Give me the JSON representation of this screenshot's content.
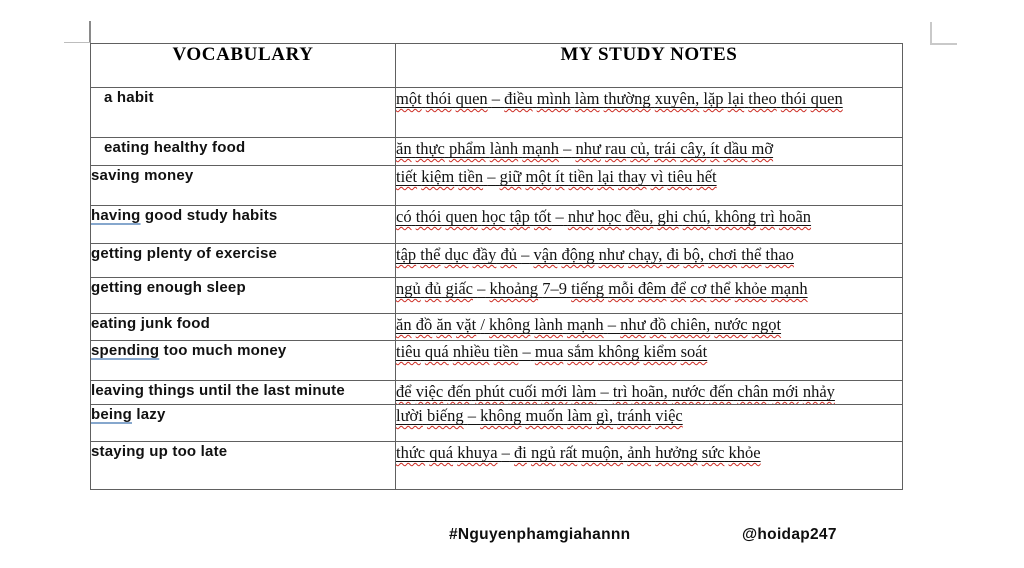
{
  "table": {
    "headers": [
      {
        "label": "VOCABULARY"
      },
      {
        "label": "MY STUDY NOTES"
      }
    ],
    "rows": [
      {
        "term_lead": "",
        "term_rest": "a habit",
        "note": "một thói quen – điều mình làm thường xuyên, lặp lại theo thói quen"
      },
      {
        "term_lead": "",
        "term_rest": "eating healthy food",
        "note": "ăn thực phẩm lành mạnh – như rau củ, trái cây, ít dầu mỡ"
      },
      {
        "term_lead": "",
        "term_rest": "saving money",
        "note": "tiết kiệm tiền – giữ một ít tiền lại thay vì tiêu hết"
      },
      {
        "term_lead": "having",
        "term_rest": " good study habits",
        "note": "có thói quen học tập tốt – như học đều, ghi chú, không trì hoãn"
      },
      {
        "term_lead": "",
        "term_rest": "getting plenty of exercise",
        "note": "tập thể dục đầy đủ – vận động như chạy, đi bộ, chơi thể thao"
      },
      {
        "term_lead": "",
        "term_rest": "getting enough sleep",
        "note": "ngủ đủ giấc – khoảng 7–9 tiếng mỗi đêm để cơ thể khỏe mạnh"
      },
      {
        "term_lead": "",
        "term_rest": "eating junk food",
        "note": "ăn đồ ăn vặt / không lành mạnh – như đồ chiên, nước ngọt"
      },
      {
        "term_lead": "spending",
        "term_rest": " too much money",
        "note": "tiêu quá nhiều tiền – mua sắm không kiểm soát"
      },
      {
        "term_lead": "",
        "term_rest": "leaving things until the last minute",
        "note": "để việc đến phút cuối mới làm – trì hoãn, nước đến chân mới nhảy"
      },
      {
        "term_lead": "being",
        "term_rest": " lazy",
        "note": "lười biếng – không muốn làm gì, tránh việc"
      },
      {
        "term_lead": "",
        "term_rest": "staying up too late",
        "note": "thức quá khuya – đi ngủ rất muộn, ảnh hưởng sức khỏe"
      }
    ]
  },
  "footer": {
    "hashtag": "#Nguyenphamgiahannn",
    "handle": "@hoidap247"
  },
  "colors": {
    "squiggle_red": "#cc2a21",
    "term_underline_blue": "#86a7cd",
    "table_border": "#606060"
  }
}
